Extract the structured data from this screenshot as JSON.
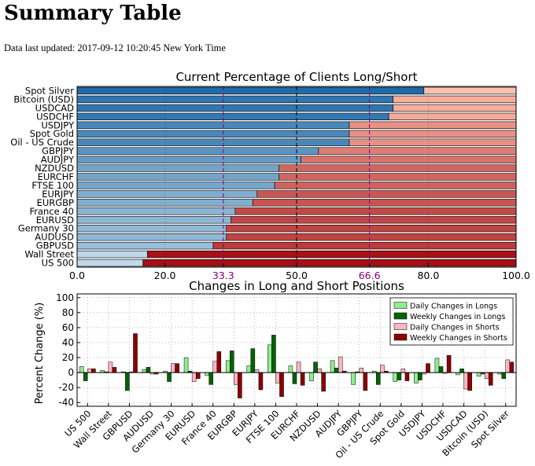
{
  "page": {
    "title": "Summary Table",
    "updated_label": "Data last updated:",
    "updated_value": "2017-09-12 10:20:45 New York Time"
  },
  "chart_data": [
    {
      "type": "bar",
      "orientation": "horizontal",
      "stacked": true,
      "title": "Current Percentage of Clients Long/Short",
      "categories": [
        "Spot Silver",
        "Bitcoin (USD)",
        "USDCAD",
        "USDCHF",
        "USDJPY",
        "Spot Gold",
        "Oil - US Crude",
        "GBPJPY",
        "AUDJPY",
        "NZDUSD",
        "EURCHF",
        "FTSE 100",
        "EURJPY",
        "EURGBP",
        "France 40",
        "EURUSD",
        "Germany 30",
        "AUDUSD",
        "GBPUSD",
        "Wall Street",
        "US 500"
      ],
      "series": [
        {
          "role": "long",
          "values": [
            79,
            72,
            72,
            71,
            62,
            62,
            62,
            55,
            51,
            46,
            46,
            45,
            41,
            40,
            36,
            35,
            34,
            34,
            31,
            16,
            15
          ],
          "color_strong": "#1f6aa8",
          "color_weak": "#c0daea"
        },
        {
          "role": "short",
          "values": [
            21,
            28,
            28,
            29,
            38,
            38,
            38,
            45,
            49,
            54,
            54,
            55,
            59,
            60,
            64,
            65,
            66,
            66,
            69,
            84,
            85
          ],
          "color_weak": "#ffc0ad",
          "color_strong": "#a50f15"
        }
      ],
      "xlim": [
        0,
        100
      ],
      "xticks": [
        "0.0",
        "20.0",
        "33.3",
        "50.0",
        "66.6",
        "80.0",
        "100.0"
      ],
      "reference_lines": [
        {
          "x": 33.3,
          "label": "33.3",
          "color": "#800080"
        },
        {
          "x": 50.0,
          "label": "50.0",
          "color": "#000000"
        },
        {
          "x": 66.6,
          "label": "66.6",
          "color": "#800080"
        }
      ],
      "grid": true
    },
    {
      "type": "bar",
      "title": "Changes in Long and Short Positions",
      "ylabel": "Percent Change (%)",
      "ylim": [
        -45,
        105
      ],
      "yticks": [
        -40,
        -20,
        0,
        20,
        40,
        60,
        80,
        100
      ],
      "categories": [
        "US 500",
        "Wall Street",
        "GBPUSD",
        "AUDUSD",
        "Germany 30",
        "EURUSD",
        "France 40",
        "EURGBP",
        "EURJPY",
        "FTSE 100",
        "EURCHF",
        "NZDUSD",
        "AUDJPY",
        "GBPJPY",
        "Oil - US Crude",
        "Spot Gold",
        "USDJPY",
        "USDCHF",
        "USDCAD",
        "Bitcoin (USD)",
        "Spot Silver"
      ],
      "series": [
        {
          "name": "Daily Changes in Longs",
          "color": "#90ee90",
          "values": [
            8,
            3,
            1,
            4,
            2,
            20,
            -4,
            16,
            9,
            37,
            9,
            -11,
            16,
            -16,
            2,
            -12,
            -14,
            19,
            -3,
            -5,
            -2
          ]
        },
        {
          "name": "Weekly Changes in Longs",
          "color": "#006400",
          "values": [
            -11,
            1,
            -24,
            7,
            -12,
            2,
            -16,
            29,
            32,
            50,
            -15,
            14,
            6,
            1,
            -16,
            -10,
            -10,
            8,
            5,
            -2,
            -8
          ]
        },
        {
          "name": "Daily Changes in Shorts",
          "color": "#ffb6c1",
          "values": [
            5,
            14,
            1,
            -2,
            12,
            -12,
            15,
            -16,
            4,
            -14,
            14,
            5,
            21,
            6,
            10,
            5,
            -2,
            -1,
            -22,
            -8,
            17
          ]
        },
        {
          "name": "Weekly Changes in Shorts",
          "color": "#8b0000",
          "values": [
            5,
            7,
            52,
            -2,
            12,
            -8,
            28,
            -34,
            -23,
            -32,
            -17,
            -25,
            2,
            -24,
            2,
            -11,
            12,
            23,
            -24,
            -17,
            14
          ]
        }
      ],
      "legend": "top-right",
      "grid": true
    }
  ]
}
